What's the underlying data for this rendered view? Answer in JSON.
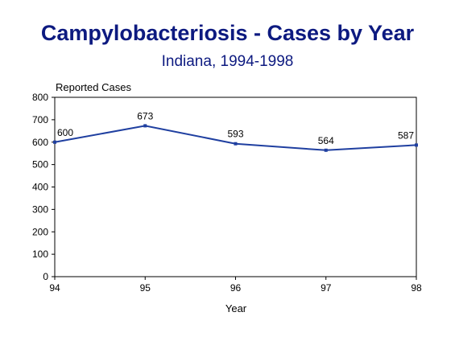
{
  "chart_data": {
    "type": "line",
    "title": "Campylobacteriosis - Cases by Year",
    "subtitle": "Indiana, 1994-1998",
    "xlabel": "Year",
    "ylabel": "Reported Cases",
    "categories": [
      "94",
      "95",
      "96",
      "97",
      "98"
    ],
    "values": [
      600,
      673,
      593,
      564,
      587
    ],
    "data_labels": [
      "600",
      "673",
      "593",
      "564",
      "587"
    ],
    "ylim": [
      0,
      800
    ],
    "yticks": [
      0,
      100,
      200,
      300,
      400,
      500,
      600,
      700,
      800
    ],
    "grid": false,
    "legend": "none",
    "line_color": "#1f3fa0",
    "title_color": "#0d1a80"
  }
}
